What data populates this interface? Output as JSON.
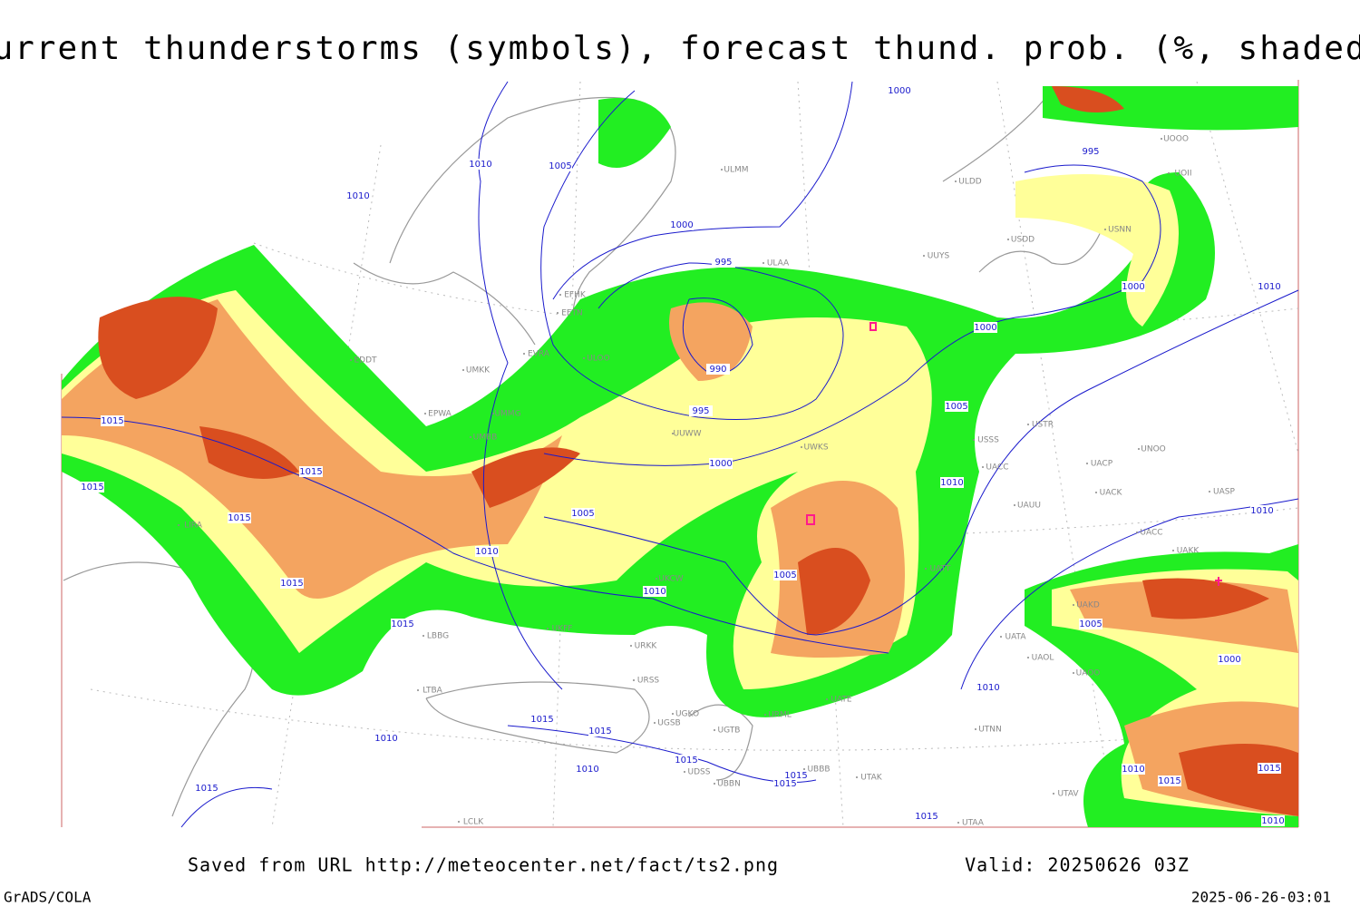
{
  "title": "Current thunderstorms (symbols), forecast thund. prob. (%, shaded)",
  "isobar_labels": [
    1010,
    1005,
    1010,
    1000,
    995,
    1000,
    995,
    990,
    995,
    1000,
    1010,
    1005,
    1000,
    1010,
    1015,
    1015,
    1015,
    1015,
    1005,
    1010,
    1010,
    1005,
    1015,
    1010,
    1015,
    1005,
    1000,
    1010,
    1015,
    1015,
    1010,
    1015,
    1010,
    1015,
    1015,
    1015,
    1015,
    1010,
    1015,
    1015,
    1010,
    1000
  ],
  "station_codes": [
    "ULMM",
    "ULDD",
    "UOOO",
    "UOII",
    "USDD",
    "USNN",
    "UUYS",
    "ULAA",
    "EFHK",
    "EETN",
    "EVRA",
    "ULOO",
    "EDDT",
    "UMKK",
    "EPWA",
    "UMMG",
    "UMBB",
    "UUWW",
    "UWKS",
    "USSS",
    "USTR",
    "UNOO",
    "UACC",
    "UACP",
    "UACK",
    "UASP",
    "UAUU",
    "LIRA",
    "UKCW",
    "UATT",
    "UAKD",
    "UAKK",
    "UACC",
    "UATA",
    "UAOL",
    "UAOO",
    "UATE",
    "URML",
    "UGKO",
    "UGSB",
    "UTNN",
    "UDSS",
    "UGTB",
    "UBBB",
    "UTAK",
    "UTAV",
    "UTAA",
    "LCLK",
    "LTBA",
    "LBBG",
    "UKFF",
    "URKK",
    "URSS",
    "UBBN"
  ],
  "footer": {
    "source": "Saved from URL http://meteocenter.net/fact/ts2.png",
    "valid": "Valid: 20250626 03Z",
    "software": "GrADS/COLA",
    "timestamp": "2025-06-26-03:01"
  }
}
